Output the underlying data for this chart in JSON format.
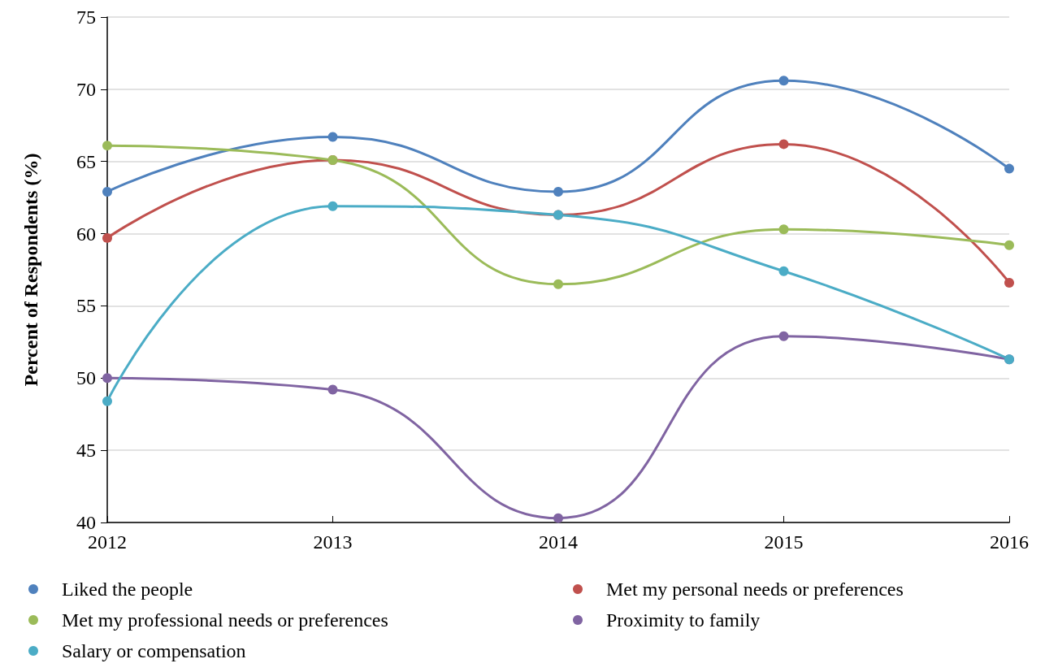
{
  "chart_data": {
    "type": "line",
    "ylabel": "Percent of Respondents (%)",
    "categories": [
      "2012",
      "2013",
      "2014",
      "2015",
      "2016"
    ],
    "series": [
      {
        "name": "Liked the people",
        "color": "#4f81bd",
        "values": [
          62.9,
          66.7,
          62.9,
          70.6,
          64.5
        ]
      },
      {
        "name": "Met my personal needs or preferences",
        "color": "#c0504d",
        "values": [
          59.7,
          65.1,
          61.3,
          66.2,
          56.6
        ]
      },
      {
        "name": "Met my professional needs or preferences",
        "color": "#9bbb59",
        "values": [
          66.1,
          65.1,
          56.5,
          60.3,
          59.2
        ]
      },
      {
        "name": "Proximity to family",
        "color": "#8064a2",
        "values": [
          50.0,
          49.2,
          40.3,
          52.9,
          51.3
        ]
      },
      {
        "name": "Salary or compensation",
        "color": "#4bacc6",
        "values": [
          48.4,
          61.9,
          61.3,
          57.4,
          51.3
        ]
      }
    ],
    "ylim": [
      40,
      75
    ],
    "yticks": [
      40,
      45,
      50,
      55,
      60,
      65,
      70,
      75
    ],
    "grid": "y",
    "legend": "bottom",
    "marker": "circle",
    "line_style": "solid"
  }
}
